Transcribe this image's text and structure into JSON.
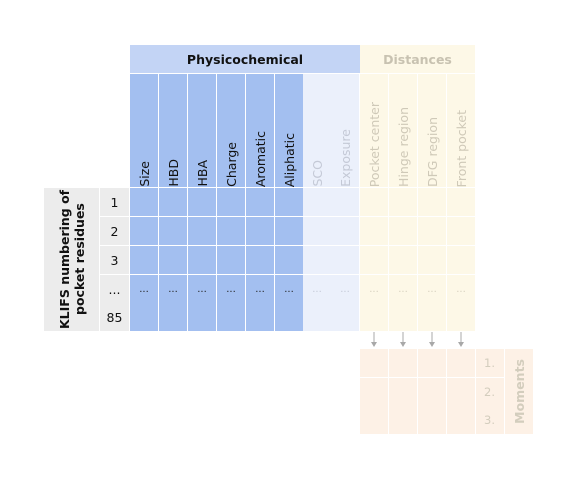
{
  "groups": {
    "physicochemical": "Physicochemical",
    "distances": "Distances"
  },
  "columns": {
    "physicochemical": [
      "Size",
      "HBD",
      "HBA",
      "Charge",
      "Aromatic",
      "Aliphatic",
      "SCO",
      "Exposure"
    ],
    "distances": [
      "Pocket center",
      "Hinge region",
      "DFG region",
      "Front pocket"
    ]
  },
  "rows": {
    "axis_label": "KLIFS numbering of pocket residues",
    "labels": [
      "1",
      "2",
      "3",
      "...",
      "85"
    ],
    "ellipsis": "..."
  },
  "moments": {
    "label": "Moments",
    "rows": [
      "1.",
      "2.",
      "3."
    ]
  },
  "colors": {
    "physchem_header": "#c3d4f5",
    "physchem_strong": "#a3bff0",
    "physchem_faint": "#ebf0fb",
    "distances": "#fdf8e7",
    "moments": "#fdf1e6",
    "arrow": "#a8a8a8"
  }
}
